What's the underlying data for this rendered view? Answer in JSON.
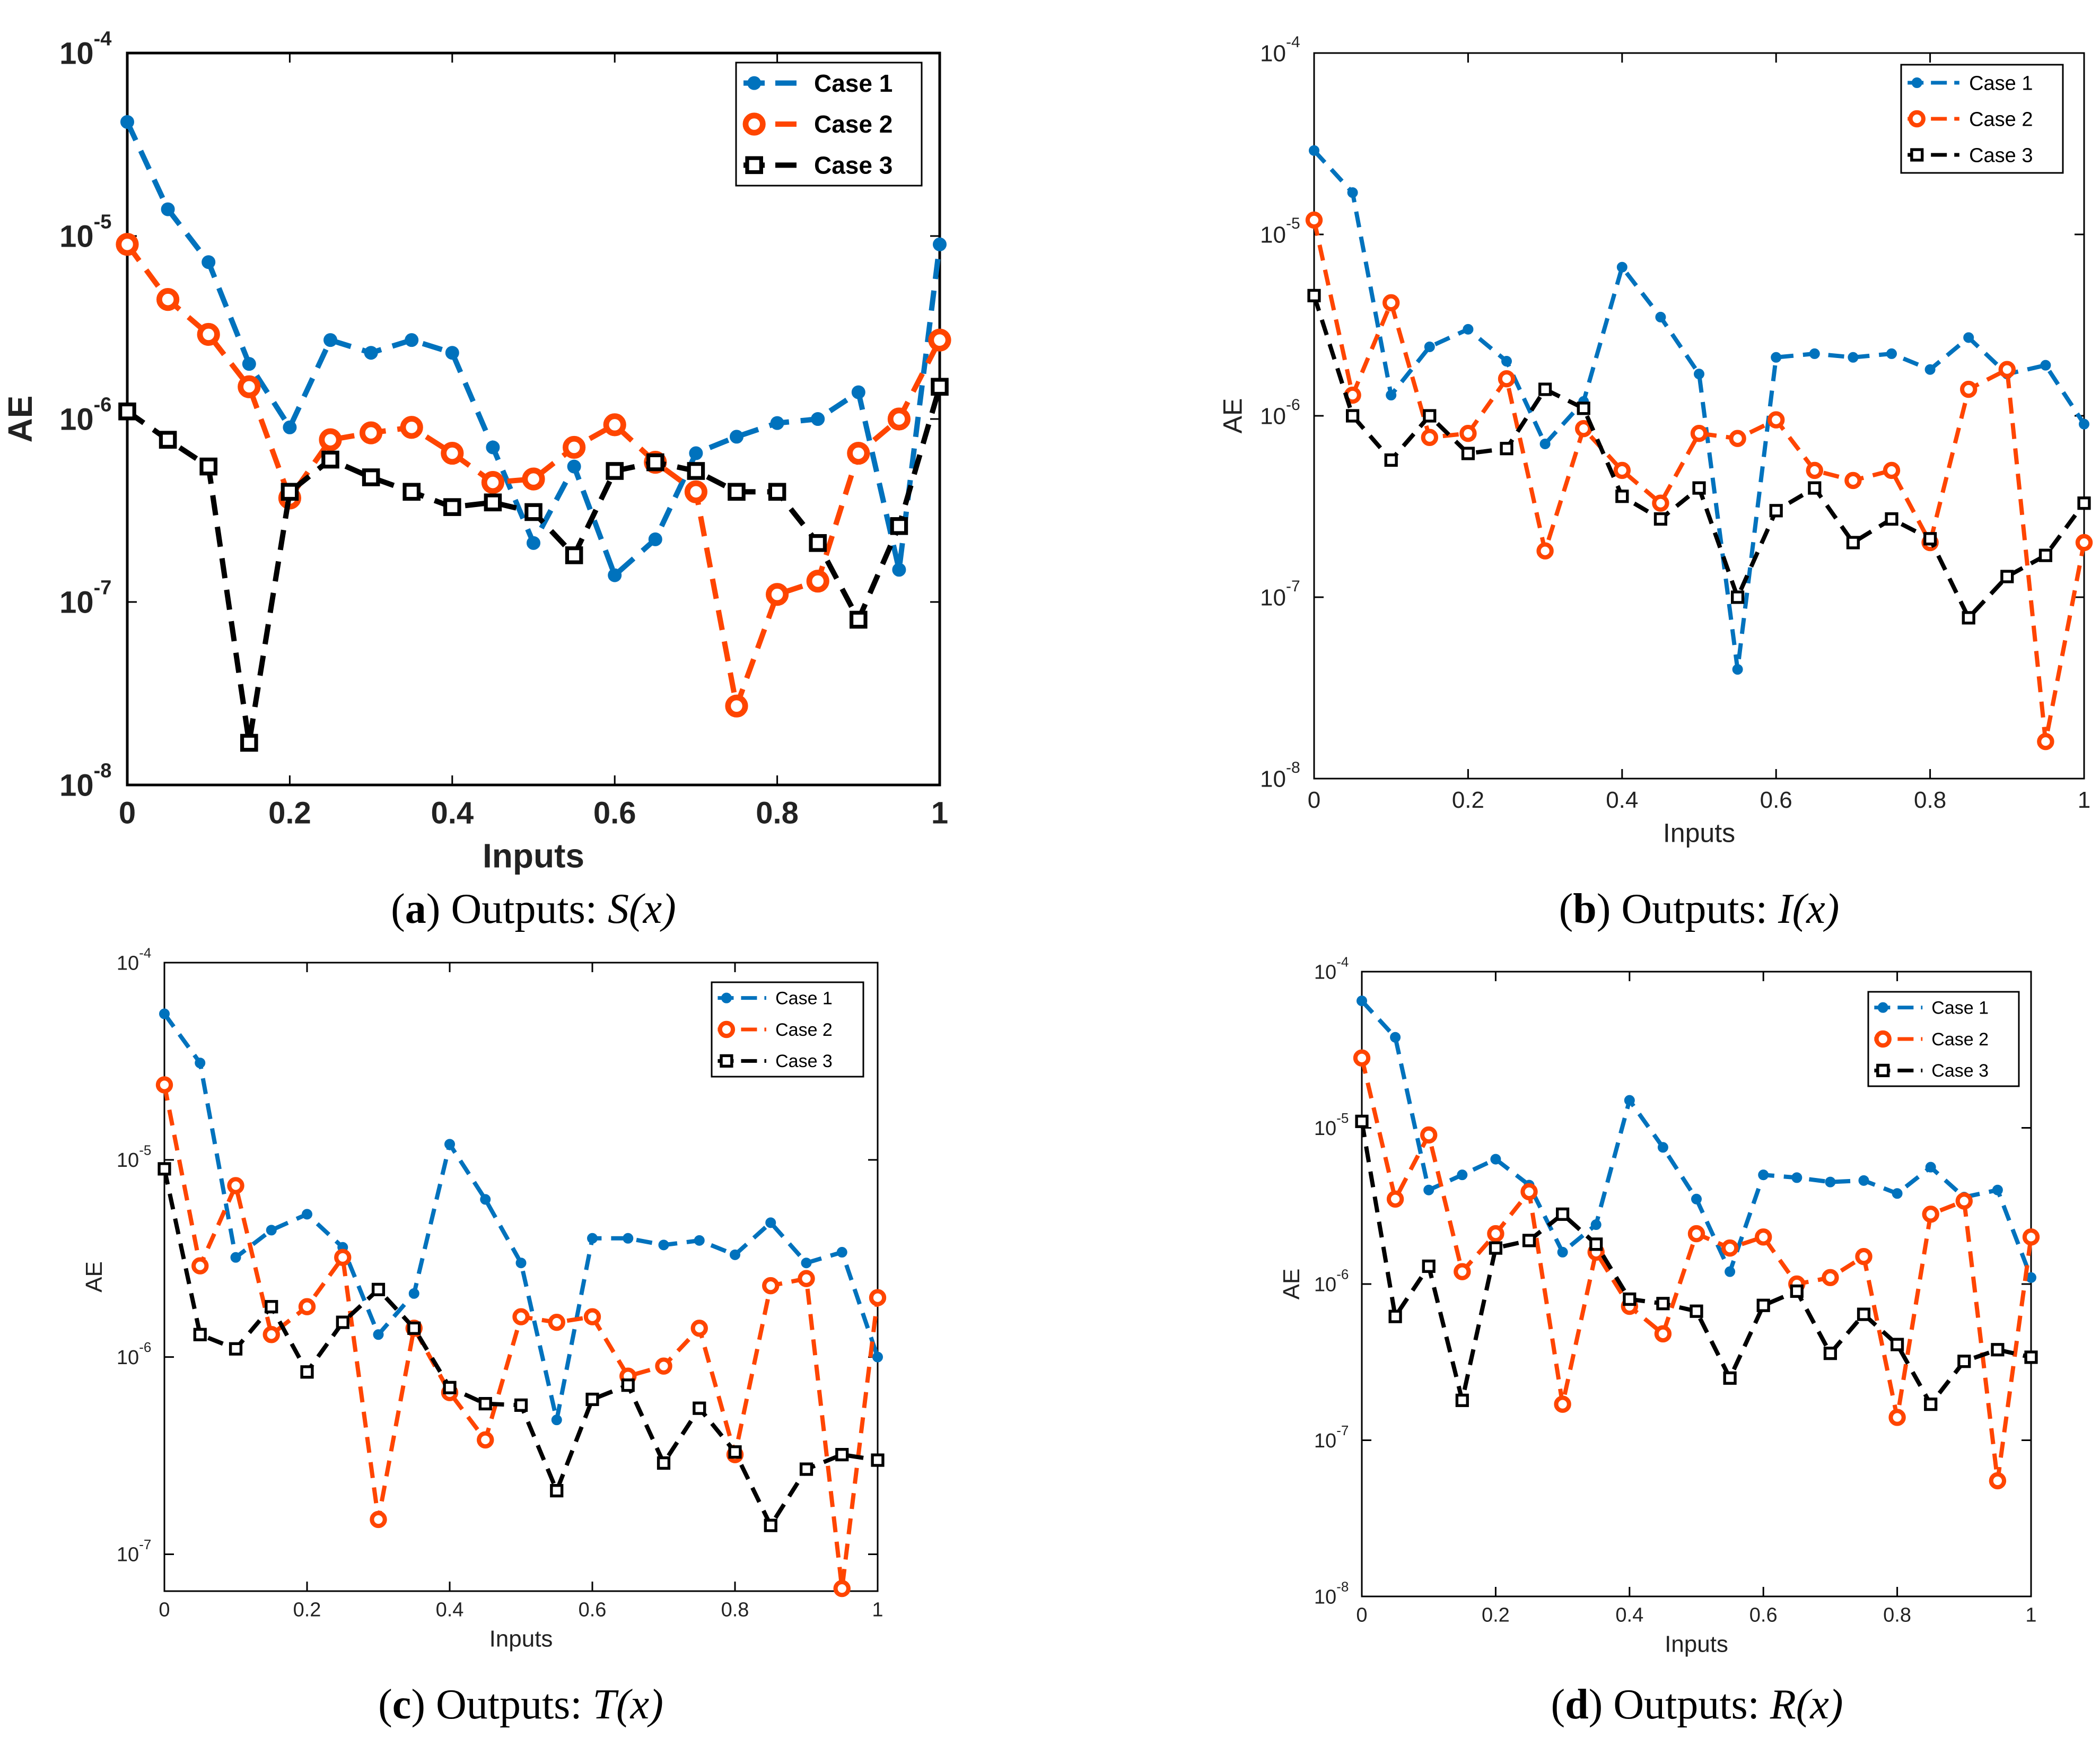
{
  "colors": {
    "case1": "#0072BD",
    "case2": "#FF4500",
    "case3": "#000000"
  },
  "chart_data": [
    {
      "type": "line",
      "caption": {
        "letter": "a",
        "text": ") Outputs:  ",
        "func": "S(x)"
      },
      "xlabel": "Inputs",
      "ylabel": "AE",
      "yscale": "log",
      "xlim": [
        0,
        1
      ],
      "ylim": [
        1e-08,
        0.0001
      ],
      "x_ticks": [
        "0",
        "0.2",
        "0.4",
        "0.6",
        "0.8",
        "1"
      ],
      "y_ticks": [
        "10",
        "10",
        "10",
        "10",
        "10"
      ],
      "y_tick_exponents": [
        "-8",
        "-7",
        "-6",
        "-5",
        "-4"
      ],
      "grid": false,
      "legend_position": "top-right",
      "x": [
        0,
        0.05,
        0.1,
        0.15,
        0.2,
        0.25,
        0.3,
        0.35,
        0.4,
        0.45,
        0.5,
        0.55,
        0.6,
        0.65,
        0.7,
        0.75,
        0.8,
        0.85,
        0.9,
        0.95,
        1
      ],
      "series": [
        {
          "name": "Case 1",
          "values": [
            4.2e-05,
            1.4e-05,
            7.2e-06,
            2e-06,
            9e-07,
            2.7e-06,
            2.3e-06,
            2.7e-06,
            2.3e-06,
            7e-07,
            2.1e-07,
            5.5e-07,
            1.4e-07,
            2.2e-07,
            6.5e-07,
            8e-07,
            9.5e-07,
            1e-06,
            1.4e-06,
            1.5e-07,
            9e-06
          ]
        },
        {
          "name": "Case 2",
          "values": [
            9e-06,
            4.5e-06,
            2.9e-06,
            1.5e-06,
            3.7e-07,
            7.7e-07,
            8.4e-07,
            9e-07,
            6.5e-07,
            4.5e-07,
            4.7e-07,
            7e-07,
            9.3e-07,
            5.8e-07,
            4e-07,
            2.7e-08,
            1.1e-07,
            1.3e-07,
            6.5e-07,
            1e-06,
            2.7e-06
          ]
        },
        {
          "name": "Case 3",
          "values": [
            1.1e-06,
            7.7e-07,
            5.5e-07,
            1.7e-08,
            4e-07,
            6e-07,
            4.8e-07,
            4e-07,
            3.3e-07,
            3.5e-07,
            3.1e-07,
            1.8e-07,
            5.2e-07,
            5.8e-07,
            5.2e-07,
            4e-07,
            4e-07,
            2.1e-07,
            8e-08,
            2.6e-07,
            1.5e-06
          ]
        }
      ]
    },
    {
      "type": "line",
      "caption": {
        "letter": "b",
        "text": ") Outputs:  ",
        "func": "I(x)"
      },
      "xlabel": "Inputs",
      "ylabel": "AE",
      "yscale": "log",
      "xlim": [
        0,
        1
      ],
      "ylim": [
        1e-08,
        0.0001
      ],
      "x_ticks": [
        "0",
        "0.2",
        "0.4",
        "0.6",
        "0.8",
        "1"
      ],
      "y_ticks": [
        "10",
        "10",
        "10",
        "10",
        "10"
      ],
      "y_tick_exponents": [
        "-8",
        "-7",
        "-6",
        "-5",
        "-4"
      ],
      "grid": false,
      "legend_position": "top-right",
      "x": [
        0,
        0.05,
        0.1,
        0.15,
        0.2,
        0.25,
        0.3,
        0.35,
        0.4,
        0.45,
        0.5,
        0.55,
        0.6,
        0.65,
        0.7,
        0.75,
        0.8,
        0.85,
        0.9,
        0.95,
        1
      ],
      "series": [
        {
          "name": "Case 1",
          "values": [
            2.9e-05,
            1.7e-05,
            1.3e-06,
            2.4e-06,
            3e-06,
            2e-06,
            7e-07,
            1.2e-06,
            6.6e-06,
            3.5e-06,
            1.7e-06,
            4e-08,
            2.1e-06,
            2.2e-06,
            2.1e-06,
            2.2e-06,
            1.8e-06,
            2.7e-06,
            1.7e-06,
            1.9e-06,
            9e-07
          ]
        },
        {
          "name": "Case 2",
          "values": [
            1.2e-05,
            1.3e-06,
            4.2e-06,
            7.6e-07,
            8e-07,
            1.6e-06,
            1.8e-07,
            8.5e-07,
            5e-07,
            3.3e-07,
            8e-07,
            7.5e-07,
            9.5e-07,
            5e-07,
            4.4e-07,
            5e-07,
            2e-07,
            1.4e-06,
            1.8e-06,
            1.6e-08,
            2e-07
          ]
        },
        {
          "name": "Case 3",
          "values": [
            4.6e-06,
            1e-06,
            5.7e-07,
            1e-06,
            6.2e-07,
            6.6e-07,
            1.4e-06,
            1.1e-06,
            3.6e-07,
            2.7e-07,
            4e-07,
            1e-07,
            3e-07,
            4e-07,
            2e-07,
            2.7e-07,
            2.1e-07,
            7.7e-08,
            1.3e-07,
            1.7e-07,
            3.3e-07
          ]
        }
      ]
    },
    {
      "type": "line",
      "caption": {
        "letter": "c",
        "text": ") Outputs:  ",
        "func": "T(x)"
      },
      "xlabel": "Inputs",
      "ylabel": "AE",
      "yscale": "log",
      "xlim": [
        0,
        1
      ],
      "ylim": [
        6.5e-08,
        0.0001
      ],
      "x_ticks": [
        "0",
        "0.2",
        "0.4",
        "0.6",
        "0.8",
        "1"
      ],
      "y_ticks": [
        "10",
        "10",
        "10",
        "10"
      ],
      "y_tick_exponents": [
        "-7",
        "-6",
        "-5",
        "-4"
      ],
      "grid": false,
      "legend_position": "top-right",
      "x": [
        0,
        0.05,
        0.1,
        0.15,
        0.2,
        0.25,
        0.3,
        0.35,
        0.4,
        0.45,
        0.5,
        0.55,
        0.6,
        0.65,
        0.7,
        0.75,
        0.8,
        0.85,
        0.9,
        0.95,
        1
      ],
      "series": [
        {
          "name": "Case 1",
          "values": [
            5.5e-05,
            3.1e-05,
            3.2e-06,
            4.4e-06,
            5.3e-06,
            3.6e-06,
            1.3e-06,
            2.1e-06,
            1.2e-05,
            6.3e-06,
            3e-06,
            4.8e-07,
            4e-06,
            4e-06,
            3.7e-06,
            3.9e-06,
            3.3e-06,
            4.8e-06,
            3e-06,
            3.4e-06,
            1e-06
          ]
        },
        {
          "name": "Case 2",
          "values": [
            2.4e-05,
            2.9e-06,
            7.4e-06,
            1.3e-06,
            1.8e-06,
            3.2e-06,
            1.5e-07,
            1.4e-06,
            6.6e-07,
            3.8e-07,
            1.6e-06,
            1.5e-06,
            1.6e-06,
            8e-07,
            9e-07,
            1.4e-06,
            3.2e-07,
            2.3e-06,
            2.5e-06,
            6.7e-08,
            2e-06
          ]
        },
        {
          "name": "Case 3",
          "values": [
            9e-06,
            1.3e-06,
            1.1e-06,
            1.8e-06,
            8.4e-07,
            1.5e-06,
            2.2e-06,
            1.4e-06,
            7e-07,
            5.8e-07,
            5.7e-07,
            2.1e-07,
            6.1e-07,
            7.2e-07,
            2.9e-07,
            5.5e-07,
            3.3e-07,
            1.4e-07,
            2.7e-07,
            3.2e-07,
            3e-07
          ]
        }
      ]
    },
    {
      "type": "line",
      "caption": {
        "letter": "d",
        "text": ") Outputs:  ",
        "func": "R(x)"
      },
      "xlabel": "Inputs",
      "ylabel": "AE",
      "yscale": "log",
      "xlim": [
        0,
        1
      ],
      "ylim": [
        1e-08,
        0.0001
      ],
      "x_ticks": [
        "0",
        "0.2",
        "0.4",
        "0.6",
        "0.8",
        "1"
      ],
      "y_ticks": [
        "10",
        "10",
        "10",
        "10",
        "10"
      ],
      "y_tick_exponents": [
        "-8",
        "-7",
        "-6",
        "-5",
        "-4"
      ],
      "grid": false,
      "legend_position": "top-right",
      "x": [
        0,
        0.05,
        0.1,
        0.15,
        0.2,
        0.25,
        0.3,
        0.35,
        0.4,
        0.45,
        0.5,
        0.55,
        0.6,
        0.65,
        0.7,
        0.75,
        0.8,
        0.85,
        0.9,
        0.95,
        1
      ],
      "series": [
        {
          "name": "Case 1",
          "values": [
            6.5e-05,
            3.8e-05,
            4e-06,
            5e-06,
            6.3e-06,
            4.3e-06,
            1.6e-06,
            2.4e-06,
            1.5e-05,
            7.5e-06,
            3.5e-06,
            1.2e-06,
            5e-06,
            4.8e-06,
            4.5e-06,
            4.6e-06,
            3.8e-06,
            5.6e-06,
            3.6e-06,
            4e-06,
            1.1e-06
          ]
        },
        {
          "name": "Case 2",
          "values": [
            2.8e-05,
            3.5e-06,
            9e-06,
            1.2e-06,
            2.1e-06,
            3.9e-06,
            1.7e-07,
            1.6e-06,
            7.2e-07,
            4.8e-07,
            2.1e-06,
            1.7e-06,
            2e-06,
            1e-06,
            1.1e-06,
            1.5e-06,
            1.4e-07,
            2.8e-06,
            3.4e-06,
            5.5e-08,
            2e-06
          ]
        },
        {
          "name": "Case 3",
          "values": [
            1.1e-05,
            6.2e-07,
            1.3e-06,
            1.8e-07,
            1.7e-06,
            1.9e-06,
            2.8e-06,
            1.8e-06,
            8e-07,
            7.5e-07,
            6.7e-07,
            2.5e-07,
            7.3e-07,
            9e-07,
            3.6e-07,
            6.4e-07,
            4.1e-07,
            1.7e-07,
            3.2e-07,
            3.8e-07,
            3.4e-07
          ]
        }
      ]
    }
  ]
}
